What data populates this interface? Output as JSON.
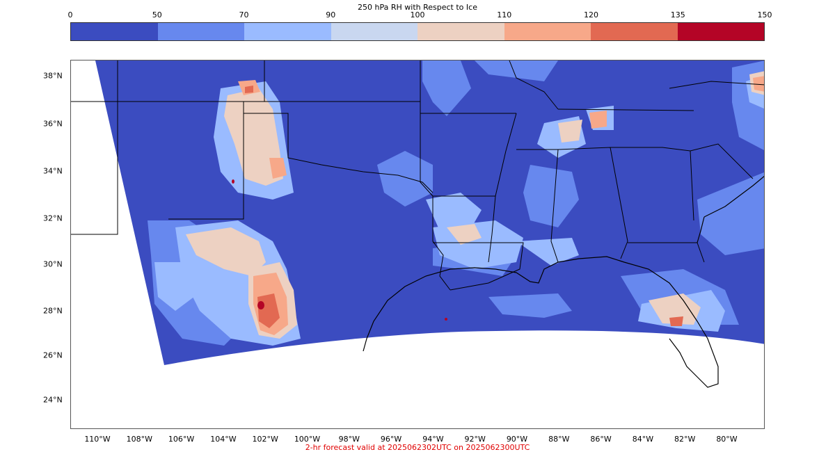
{
  "colorbar": {
    "title": "250 hPa RH with Respect to Ice",
    "ticks": [
      "0",
      "50",
      "70",
      "90",
      "100",
      "110",
      "120",
      "135",
      "150"
    ],
    "colors": [
      "#3b4cc0",
      "#6788ee",
      "#9abbff",
      "#c9d7f0",
      "#edd1c2",
      "#f7a889",
      "#e26952",
      "#b40426"
    ]
  },
  "axes": {
    "lat_labels": [
      "38°N",
      "36°N",
      "34°N",
      "32°N",
      "30°N",
      "28°N",
      "26°N",
      "24°N"
    ],
    "lon_labels": [
      "110°W",
      "108°W",
      "106°W",
      "104°W",
      "102°W",
      "100°W",
      "98°W",
      "96°W",
      "94°W",
      "92°W",
      "90°W",
      "88°W",
      "86°W",
      "84°W",
      "82°W",
      "80°W"
    ]
  },
  "footer": "2-hr forecast valid at 2025062302UTC on 2025062300UTC"
}
